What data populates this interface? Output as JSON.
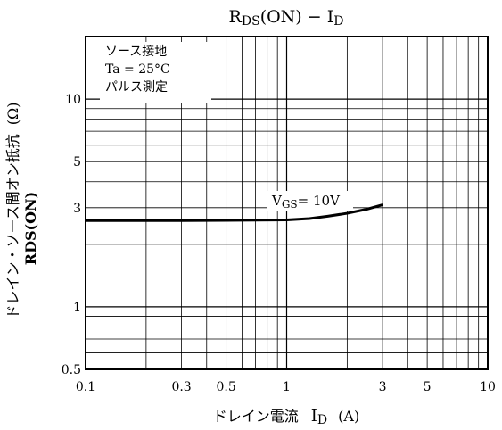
{
  "chart_data": {
    "type": "line",
    "title_main": "R",
    "title_sub1": "DS",
    "title_mid": "(ON) − I",
    "title_sub2": "D",
    "x_axis": {
      "scale": "log",
      "range": [
        0.1,
        10
      ],
      "tick_labels": [
        {
          "value": 0.1,
          "label": "0.1"
        },
        {
          "value": 0.3,
          "label": "0.3"
        },
        {
          "value": 0.5,
          "label": "0.5"
        },
        {
          "value": 1,
          "label": "1"
        },
        {
          "value": 3,
          "label": "3"
        },
        {
          "value": 5,
          "label": "5"
        },
        {
          "value": 10,
          "label": "10"
        }
      ],
      "label_text": "ドレイン電流",
      "label_sym": "I",
      "label_sub": "D",
      "label_unit": "(A)"
    },
    "y_axis": {
      "scale": "log",
      "range": [
        0.5,
        20
      ],
      "tick_labels": [
        {
          "value": 0.5,
          "label": "0.5"
        },
        {
          "value": 1,
          "label": "1"
        },
        {
          "value": 3,
          "label": "3"
        },
        {
          "value": 5,
          "label": "5"
        },
        {
          "value": 10,
          "label": "10"
        }
      ],
      "label_line1": "ドレイン・ソース間オン抵抗",
      "label_line1_unit": "(Ω)",
      "label_line2": "RDS(ON)"
    },
    "grid": true,
    "conditions": [
      "ソース接地",
      "Ta = 25°C",
      "パルス測定"
    ],
    "series": [
      {
        "annotation_main": "V",
        "annotation_sub": "GS",
        "annotation_rest": "= 10V",
        "x": [
          0.1,
          0.3,
          1,
          1.3,
          1.6,
          2,
          2.5,
          3
        ],
        "y": [
          2.6,
          2.6,
          2.62,
          2.66,
          2.73,
          2.82,
          2.95,
          3.1
        ]
      }
    ]
  }
}
